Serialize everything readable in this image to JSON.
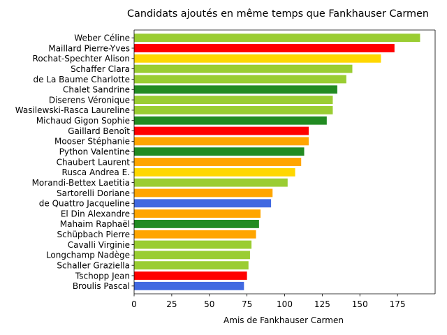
{
  "chart_data": {
    "type": "bar",
    "orientation": "horizontal",
    "title": "Candidats ajoutés en même temps que Fankhauser Carmen",
    "xlabel": "Amis de Fankhauser Carmen",
    "ylabel": "",
    "xlim": [
      0,
      200
    ],
    "xticks": [
      0,
      25,
      50,
      75,
      100,
      125,
      150,
      175
    ],
    "xtick_labels": [
      "0",
      "25",
      "50",
      "75",
      "100",
      "125",
      "150",
      "175"
    ],
    "grid": false,
    "legend": null,
    "categories": [
      "Weber Céline",
      "Maillard Pierre-Yves",
      "Rochat-Spechter Alison",
      "Schaffer Clara",
      "de La Baume Charlotte",
      "Chalet Sandrine",
      "Diserens Véronique",
      "Wasilewski-Rasca Laureline",
      "Michaud Gigon Sophie",
      "Gaillard Benoît",
      "Mooser Stéphanie",
      "Python Valentine",
      "Chaubert Laurent",
      "Rusca Andrea E.",
      "Morandi-Bettex Laetitia",
      "Sartorelli Doriane",
      "de Quattro Jacqueline",
      "El Din Alexandre",
      "Mahaim Raphaël",
      "Schüpbach Pierre",
      "Cavalli Virginie",
      "Longchamp Nadège",
      "Schaller Graziella",
      "Tschopp Jean",
      "Broulis Pascal"
    ],
    "values": [
      190,
      173,
      164,
      145,
      141,
      135,
      132,
      132,
      128,
      116,
      116,
      113,
      111,
      107,
      102,
      92,
      91,
      84,
      83,
      81,
      78,
      77,
      76,
      75,
      73
    ],
    "colors": [
      "#9acd32",
      "#ff0000",
      "#ffd700",
      "#9acd32",
      "#9acd32",
      "#228b22",
      "#9acd32",
      "#9acd32",
      "#228b22",
      "#ff0000",
      "#ffa500",
      "#228b22",
      "#ffa500",
      "#ffd700",
      "#9acd32",
      "#ffa500",
      "#4169e1",
      "#ffa500",
      "#228b22",
      "#ffa500",
      "#9acd32",
      "#9acd32",
      "#9acd32",
      "#ff0000",
      "#4169e1"
    ]
  }
}
